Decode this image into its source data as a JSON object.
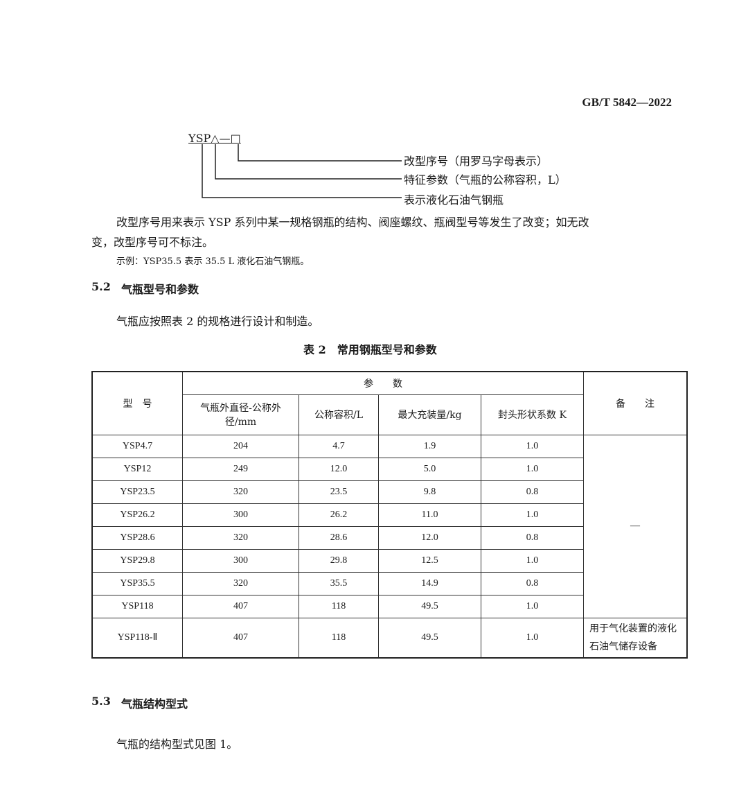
{
  "header": {
    "standard_no": "GB/T 5842—2022"
  },
  "designation": {
    "code": "YSP△—□",
    "labels": [
      "改型序号（用罗马字母表示）",
      "特征参数（气瓶的公称容积，L）",
      "表示液化石油气钢瓶"
    ]
  },
  "para1_line1": "改型序号用来表示 YSP 系列中某一规格钢瓶的结构、阀座螺纹、瓶阀型号等发生了改变；如无改",
  "para1_line2": "变，改型序号可不标注。",
  "example": "示例：YSP35.5 表示 35.5 L 液化石油气钢瓶。",
  "section_5_2": {
    "number": "5.2",
    "title": "气瓶型号和参数"
  },
  "para2": "气瓶应按照表 2 的规格进行设计和制造。",
  "table": {
    "caption": "表 2　常用钢瓶型号和参数",
    "col_model": "型　号",
    "col_params": "参　　数",
    "col_remark": "备　　注",
    "sub_headers": [
      "气瓶外直径-公称外径/mm",
      "公称容积/L",
      "最大充装量/kg",
      "封头形状系数 K"
    ],
    "rows": [
      [
        "YSP4.7",
        "204",
        "4.7",
        "1.9",
        "1.0"
      ],
      [
        "YSP12",
        "249",
        "12.0",
        "5.0",
        "1.0"
      ],
      [
        "YSP23.5",
        "320",
        "23.5",
        "9.8",
        "0.8"
      ],
      [
        "YSP26.2",
        "300",
        "26.2",
        "11.0",
        "1.0"
      ],
      [
        "YSP28.6",
        "320",
        "28.6",
        "12.0",
        "0.8"
      ],
      [
        "YSP29.8",
        "300",
        "29.8",
        "12.5",
        "1.0"
      ],
      [
        "YSP35.5",
        "320",
        "35.5",
        "14.9",
        "0.8"
      ],
      [
        "YSP118",
        "407",
        "118",
        "49.5",
        "1.0"
      ],
      [
        "YSP118-Ⅱ",
        "407",
        "118",
        "49.5",
        "1.0"
      ]
    ],
    "remark_common": "—",
    "remark_last": "用于气化装置的液化石油气储存设备"
  },
  "section_5_3": {
    "number": "5.3",
    "title": "气瓶结构型式"
  },
  "para3": "气瓶的结构型式见图 1。"
}
